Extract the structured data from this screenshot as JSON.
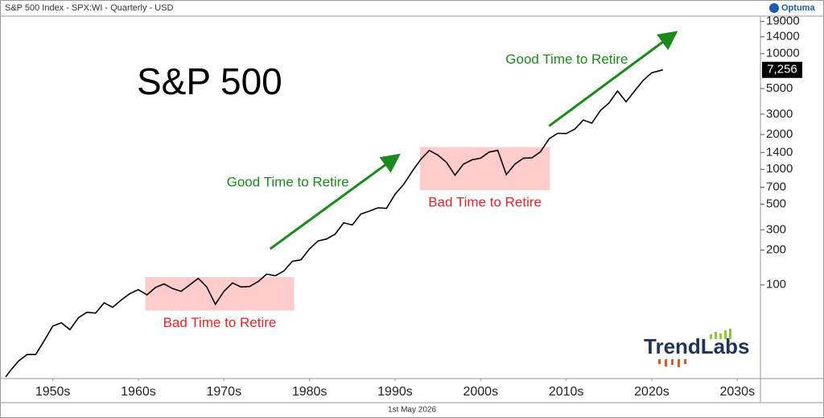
{
  "header": "S&P 500 Index - SPX:WI - Quarterly - USD",
  "footer": "1st May 2026",
  "logo": "Optuma",
  "brand": "TrendLabs",
  "chart_data": {
    "type": "line",
    "title": "S&P 500",
    "log_scale": true,
    "color": "#000000",
    "series": [
      {
        "name": "S&P 500",
        "x": [
          1949.5,
          1950,
          1951,
          1952,
          1953,
          1954,
          1955,
          1956,
          1957,
          1958,
          1959,
          1960,
          1961,
          1962,
          1963,
          1964,
          1965,
          1966,
          1967,
          1968,
          1969,
          1970,
          1971,
          1972,
          1973,
          1974,
          1975,
          1976,
          1977,
          1978,
          1979,
          1980,
          1981,
          1982,
          1983,
          1984,
          1985,
          1986,
          1987,
          1988,
          1989,
          1990,
          1991,
          1992,
          1993,
          1994,
          1995,
          1996,
          1997,
          1998,
          1999,
          2000,
          2001,
          2002,
          2003,
          2004,
          2005,
          2006,
          2007,
          2008,
          2009,
          2010,
          2011,
          2012,
          2013,
          2014,
          2015,
          2016,
          2017,
          2018,
          2019,
          2020,
          2021,
          2022,
          2023,
          2024,
          2025,
          2026.3
        ],
        "values": [
          16,
          18,
          22,
          25,
          25,
          33,
          44,
          47,
          41,
          52,
          58,
          57,
          70,
          64,
          74,
          84,
          91,
          82,
          95,
          102,
          93,
          88,
          100,
          114,
          96,
          68,
          88,
          104,
          96,
          97,
          107,
          124,
          120,
          132,
          160,
          165,
          205,
          240,
          250,
          275,
          345,
          330,
          410,
          435,
          465,
          460,
          610,
          740,
          960,
          1220,
          1460,
          1330,
          1150,
          890,
          1110,
          1210,
          1250,
          1410,
          1460,
          900,
          1110,
          1250,
          1260,
          1420,
          1840,
          2050,
          2040,
          2230,
          2670,
          2510,
          3230,
          3750,
          4760,
          3840,
          4770,
          5880,
          6850,
          7256
        ]
      }
    ],
    "last_value": {
      "value": 7256,
      "label": "7,256"
    },
    "xlim": [
      1949.3,
      2037.7
    ],
    "ylim": [
      16,
      20500
    ],
    "xticks": [
      {
        "value": 1955,
        "label": "1950s"
      },
      {
        "value": 1965,
        "label": "1960s"
      },
      {
        "value": 1975,
        "label": "1970s"
      },
      {
        "value": 1985,
        "label": "1980s"
      },
      {
        "value": 1995,
        "label": "1990s"
      },
      {
        "value": 2005,
        "label": "2000s"
      },
      {
        "value": 2015,
        "label": "2010s"
      },
      {
        "value": 2025,
        "label": "2020s"
      },
      {
        "value": 2035,
        "label": "2030s"
      }
    ],
    "yticks": [
      100,
      200,
      300,
      500,
      700,
      1000,
      1400,
      2000,
      3000,
      5000,
      10000,
      14000,
      19000
    ],
    "regions": [
      {
        "label": "Bad Time to Retire",
        "color": "#ffcccc",
        "x": [
          1965.8,
          1983.2
        ],
        "y": [
          60,
          117
        ]
      },
      {
        "label": "Bad Time to Retire",
        "color": "#ffcccc",
        "x": [
          1997.9,
          2013.1
        ],
        "y": [
          660,
          1563
        ]
      }
    ],
    "arrows": [
      {
        "label": "Good Time to Retire",
        "color": "#1a8a1a",
        "x": [
          1980.4,
          1995.2
        ],
        "y": [
          205,
          1291
        ]
      },
      {
        "label": "Good Time to Retire",
        "color": "#1a8a1a",
        "x": [
          2013.0,
          2027.6
        ],
        "y": [
          2372,
          14900
        ]
      }
    ]
  }
}
